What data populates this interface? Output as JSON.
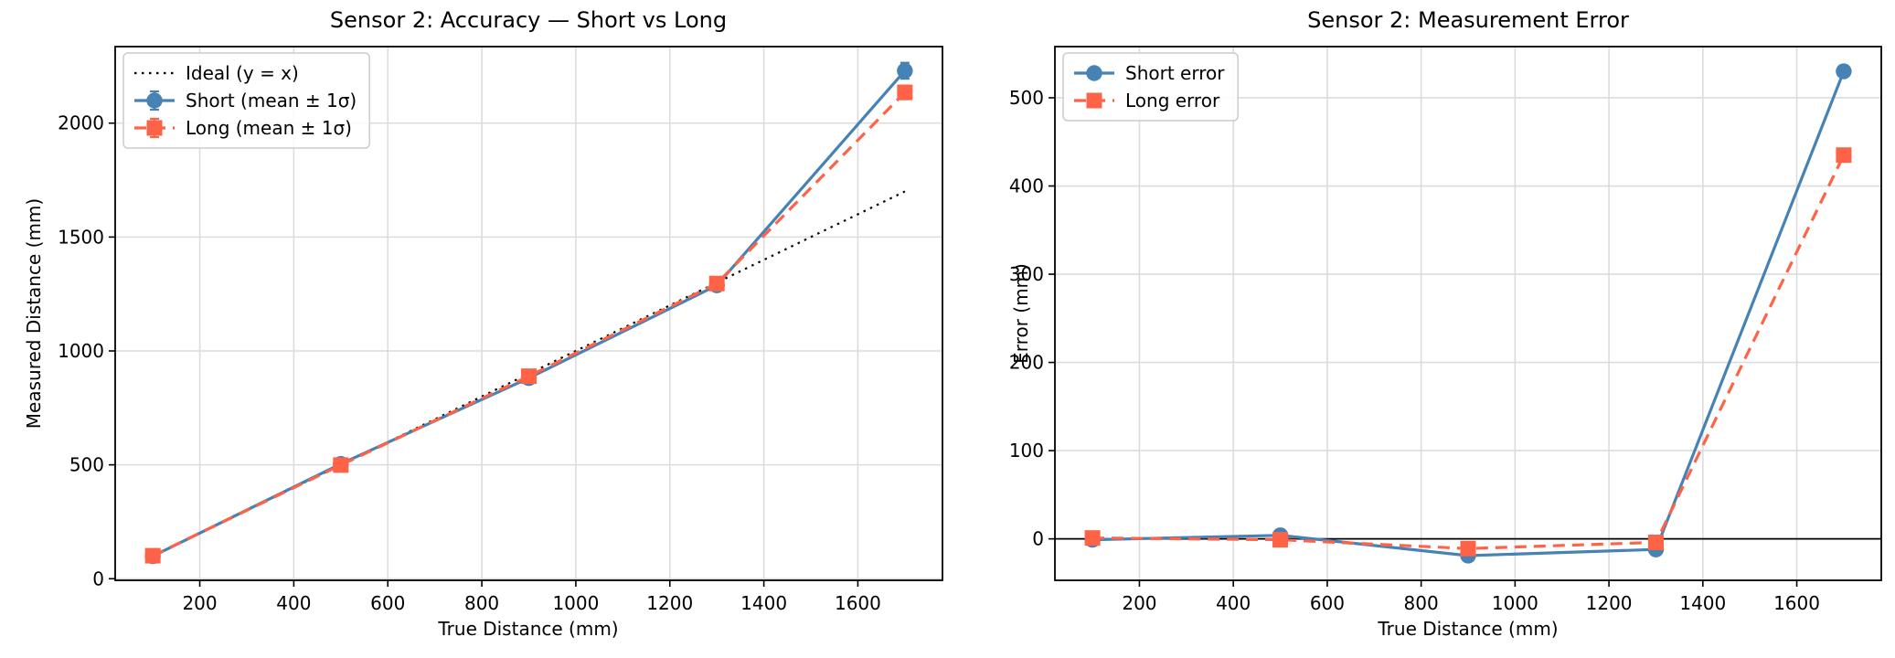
{
  "figure": {
    "background": "#ffffff",
    "grid_color": "#dcdcdc",
    "spine_color": "#000000",
    "zero_line_color": "#000000"
  },
  "chart_data": [
    {
      "type": "line",
      "title": "Sensor 2: Accuracy — Short vs Long",
      "xlabel": "True Distance (mm)",
      "ylabel": "Measured Distance (mm)",
      "x": [
        100,
        500,
        900,
        1300,
        1700
      ],
      "series": [
        {
          "name": "Ideal (y = x)",
          "role": "ideal-line",
          "x": [
            100,
            1700
          ],
          "values": [
            100,
            1700
          ],
          "color": "#000000",
          "line": "dotted",
          "marker": "none",
          "linewidth": 2.2
        },
        {
          "name": "Short (mean ± 1σ)",
          "role": "short-series",
          "values": [
            99,
            504,
            881,
            1288,
            2230
          ],
          "sigma": [
            3,
            4,
            6,
            10,
            35
          ],
          "color": "#4682b4",
          "line": "solid",
          "marker": "circle",
          "linewidth": 3.2
        },
        {
          "name": "Long (mean ± 1σ)",
          "role": "long-series",
          "values": [
            101,
            499,
            889,
            1296,
            2135
          ],
          "sigma": [
            3,
            4,
            6,
            10,
            30
          ],
          "color": "#ff6347",
          "line": "dashed",
          "marker": "square",
          "linewidth": 3.2
        }
      ],
      "xlim": [
        20,
        1780
      ],
      "ylim": [
        -7,
        2336
      ],
      "xticks": [
        200,
        400,
        600,
        800,
        1000,
        1200,
        1400,
        1600
      ],
      "yticks": [
        0,
        500,
        1000,
        1500,
        2000
      ],
      "grid": true,
      "legend_position": "upper-left",
      "zero_line": false
    },
    {
      "type": "line",
      "title": "Sensor 2: Measurement Error",
      "xlabel": "True Distance (mm)",
      "ylabel": "Error (mm)",
      "x": [
        100,
        500,
        900,
        1300,
        1700
      ],
      "series": [
        {
          "name": "Short error",
          "role": "short-error-series",
          "values": [
            -1,
            4,
            -19,
            -12,
            530
          ],
          "color": "#4682b4",
          "line": "solid",
          "marker": "circle",
          "linewidth": 3.2
        },
        {
          "name": "Long error",
          "role": "long-error-series",
          "values": [
            1,
            -1,
            -11,
            -4,
            435
          ],
          "color": "#ff6347",
          "line": "dashed",
          "marker": "square",
          "linewidth": 3.2
        }
      ],
      "xlim": [
        20,
        1780
      ],
      "ylim": [
        -47,
        558
      ],
      "xticks": [
        200,
        400,
        600,
        800,
        1000,
        1200,
        1400,
        1600
      ],
      "yticks": [
        0,
        100,
        200,
        300,
        400,
        500
      ],
      "grid": true,
      "legend_position": "upper-left",
      "zero_line": true
    }
  ]
}
